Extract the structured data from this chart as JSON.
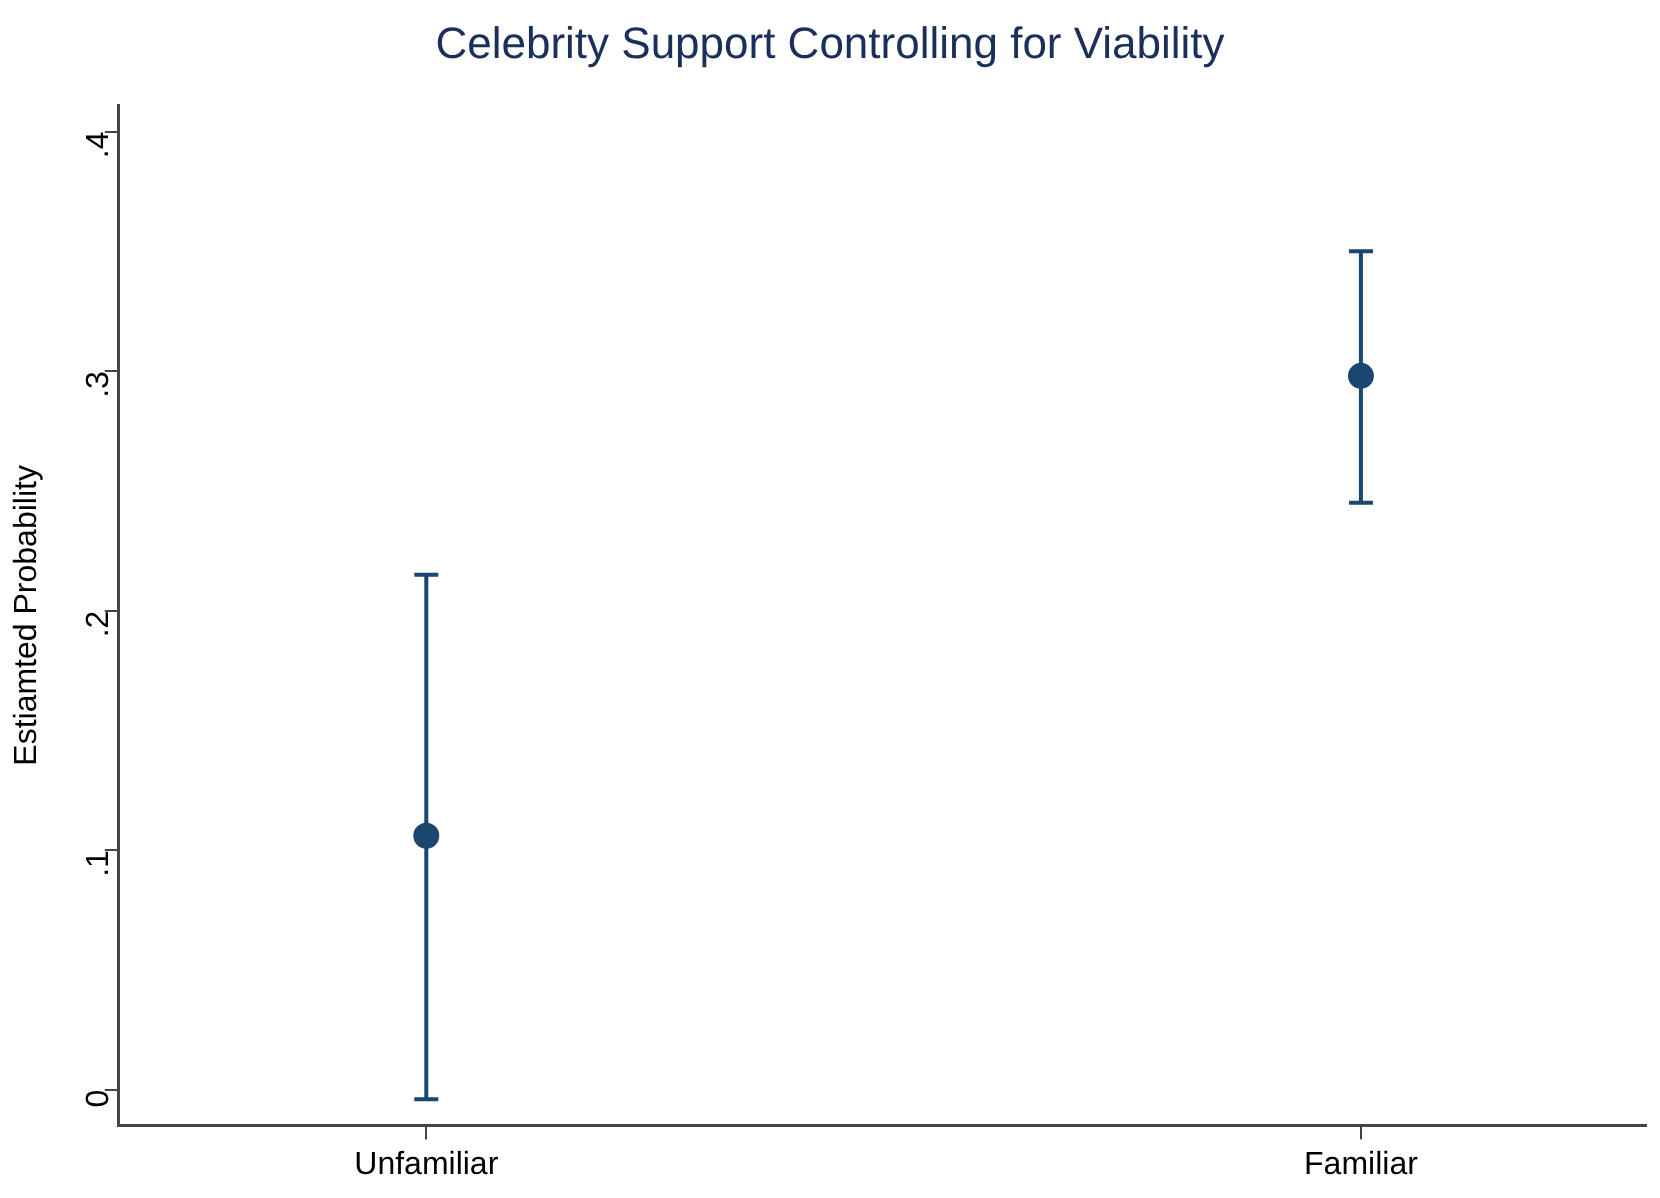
{
  "chart_data": {
    "type": "scatter",
    "title": "Celebrity Support Controlling for Viability",
    "ylabel": "Estiamted Probability",
    "categories": [
      "Unfamiliar",
      "Familiar"
    ],
    "series": [
      {
        "color": "#1a476f",
        "values": [
          0.106,
          0.298
        ],
        "errors": [
          [
            -0.004,
            0.215
          ],
          [
            0.245,
            0.35
          ]
        ]
      }
    ],
    "ylim": [
      -0.015,
      0.411
    ],
    "yticks": [
      0,
      {
        "value": 0.1,
        "label": ".1"
      },
      {
        "value": 0.2,
        "label": ".2"
      },
      {
        "value": 0.3,
        "label": ".3"
      },
      {
        "value": 0.4,
        "label": ".4"
      }
    ],
    "grid": false,
    "legend": false,
    "marker": "circle"
  }
}
